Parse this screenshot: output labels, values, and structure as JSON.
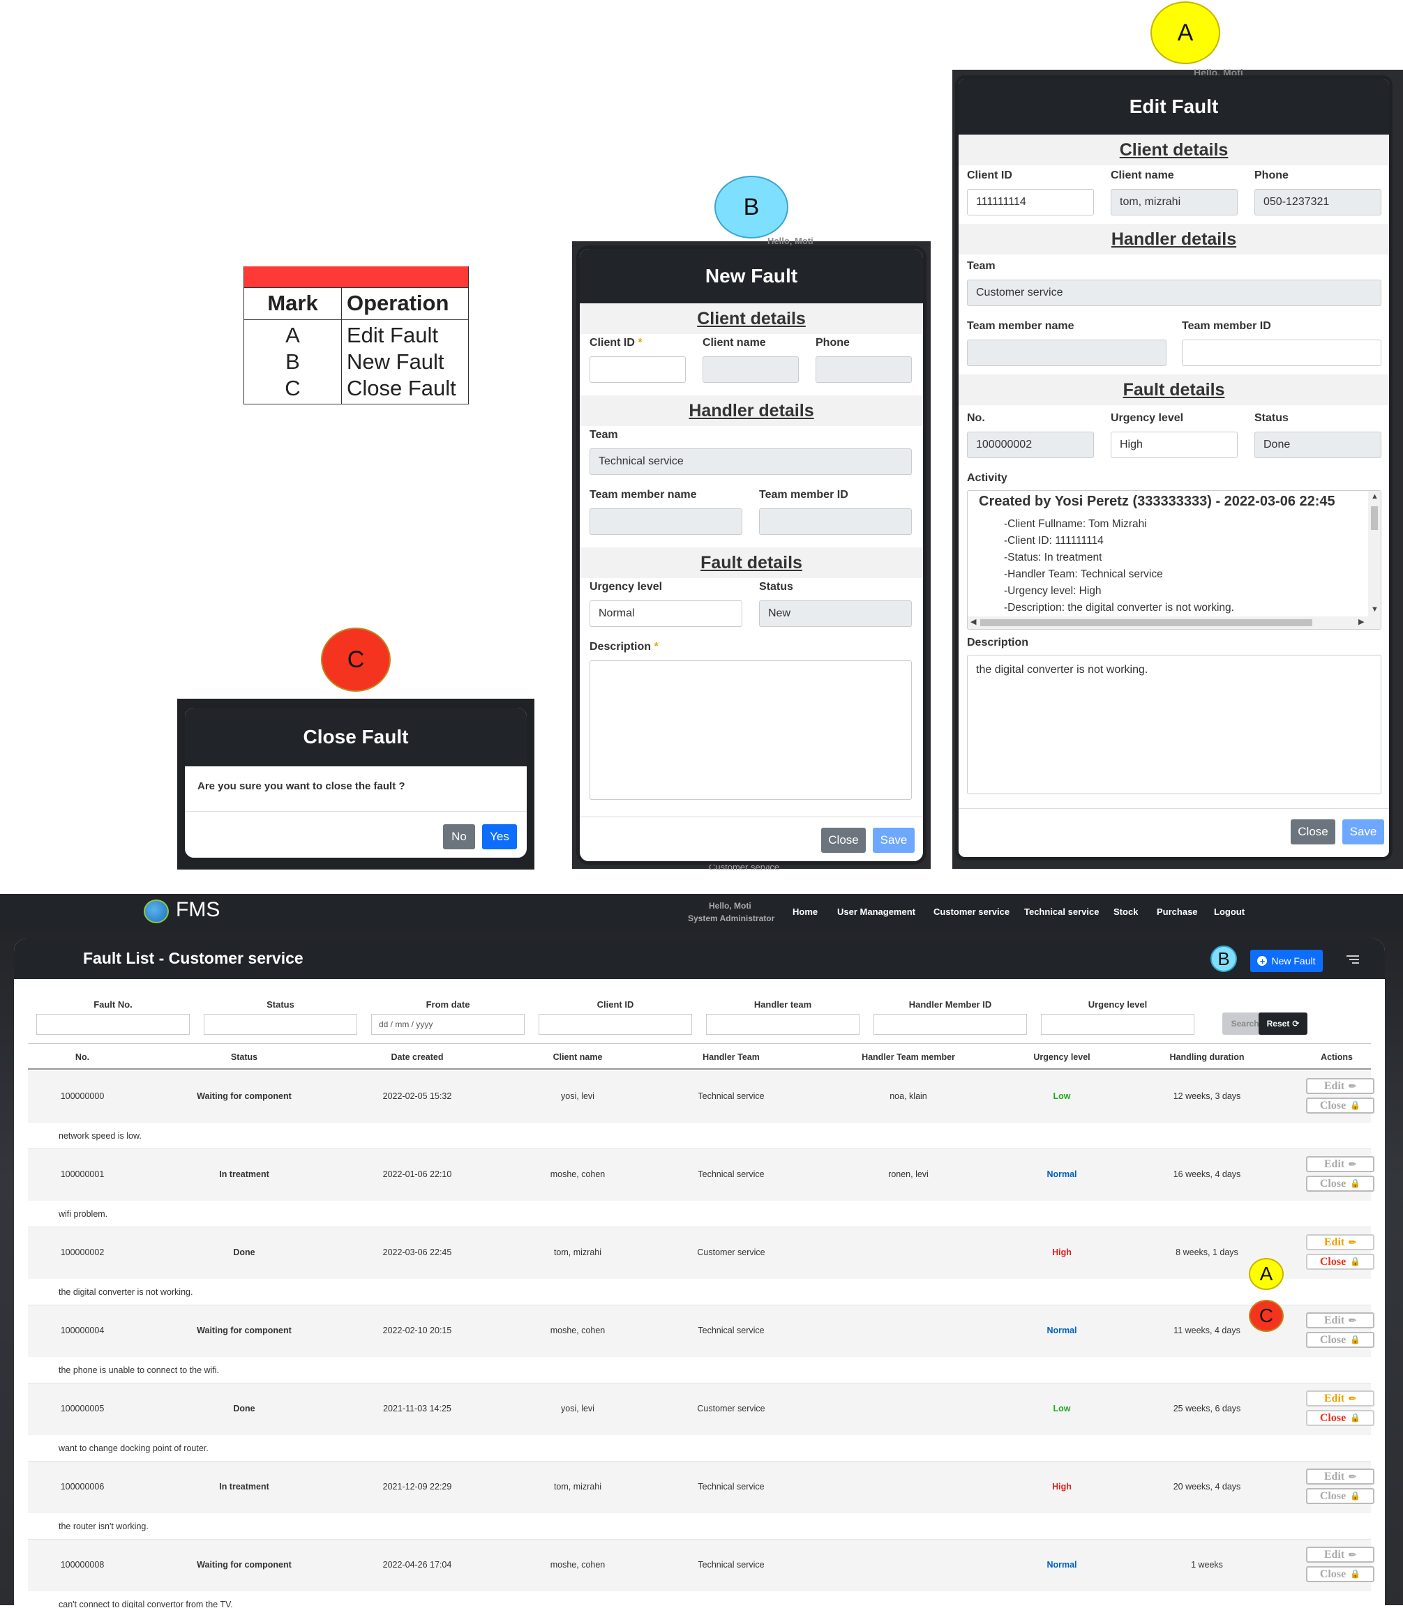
{
  "markers": {
    "a": "A",
    "b": "B",
    "c": "C"
  },
  "legend": {
    "head_mark": "Mark",
    "head_op": "Operation",
    "rows": [
      {
        "mark": "A",
        "op": "Edit Fault"
      },
      {
        "mark": "B",
        "op": "New Fault"
      },
      {
        "mark": "C",
        "op": "Close Fault"
      }
    ]
  },
  "close_modal": {
    "title": "Close Fault",
    "message": "Are you sure you want to close the fault ?",
    "no": "No",
    "yes": "Yes"
  },
  "new_modal": {
    "bg_hello": "Hello, Moti",
    "bg_team": "Customer service",
    "title": "New Fault",
    "client_section": "Client details",
    "client_id_label": "Client ID",
    "req": "*",
    "client_name_label": "Client name",
    "phone_label": "Phone",
    "handler_section": "Handler details",
    "team_label": "Team",
    "team_value": "Technical service",
    "member_name_label": "Team member name",
    "member_id_label": "Team member ID",
    "fault_section": "Fault details",
    "urgency_label": "Urgency level",
    "urgency_value": "Normal",
    "status_label": "Status",
    "status_value": "New",
    "description_label": "Description",
    "close": "Close",
    "save": "Save"
  },
  "edit_modal": {
    "bg_hello": "Hello, Moti",
    "title": "Edit Fault",
    "client_section": "Client details",
    "client_id_label": "Client ID",
    "client_id_value": "111111114",
    "client_name_label": "Client name",
    "client_name_value": "tom, mizrahi",
    "phone_label": "Phone",
    "phone_value": "050-1237321",
    "handler_section": "Handler details",
    "team_label": "Team",
    "team_value": "Customer service",
    "member_name_label": "Team member name",
    "member_id_label": "Team member ID",
    "fault_section": "Fault details",
    "no_label": "No.",
    "no_value": "100000002",
    "urgency_label": "Urgency level",
    "urgency_value": "High",
    "status_label": "Status",
    "status_value": "Done",
    "activity_label": "Activity",
    "activity_title": "Created by Yosi Peretz (333333333) - 2022-03-06 22:45",
    "activity_lines": [
      "-Client Fullname: Tom Mizrahi",
      "-Client ID: 111111114",
      "-Status: In treatment",
      "-Handler Team: Technical service",
      "-Urgency level: High",
      "-Description: the digital converter is not working."
    ],
    "description_label": "Description",
    "description_value": "the digital converter is not working.",
    "close": "Close",
    "save": "Save"
  },
  "app": {
    "logo": "FMS",
    "hello": "Hello, Moti",
    "role": "System Administrator",
    "nav": [
      "Home",
      "User Management",
      "Customer service",
      "Technical service",
      "Stock",
      "Purchase",
      "Logout"
    ],
    "page_title": "Fault List - Customer service",
    "new_fault": "New Fault",
    "filters": {
      "labels": [
        "Fault No.",
        "Status",
        "From date",
        "Client ID",
        "Handler team",
        "Handler Member ID",
        "Urgency level"
      ],
      "date_placeholder": "dd / mm / yyyy",
      "search": "Search",
      "reset": "Reset"
    },
    "columns": [
      "No.",
      "Status",
      "Date created",
      "Client name",
      "Handler Team",
      "Handler Team member",
      "Urgency level",
      "Handling duration",
      "Actions"
    ],
    "edit_label": "Edit",
    "close_label": "Close",
    "rows": [
      {
        "no": "100000000",
        "status": "Waiting for component",
        "date": "2022-02-05 15:32",
        "client": "yosi, levi",
        "team": "Technical service",
        "member": "noa, klain",
        "urgency": "Low",
        "duration": "12 weeks, 3 days",
        "desc": "network speed is low.",
        "active": false
      },
      {
        "no": "100000001",
        "status": "In treatment",
        "date": "2022-01-06 22:10",
        "client": "moshe, cohen",
        "team": "Technical service",
        "member": "ronen, levi",
        "urgency": "Normal",
        "duration": "16 weeks, 4 days",
        "desc": "wifi problem.",
        "active": false
      },
      {
        "no": "100000002",
        "status": "Done",
        "date": "2022-03-06 22:45",
        "client": "tom, mizrahi",
        "team": "Customer service",
        "member": "",
        "urgency": "High",
        "duration": "8 weeks, 1 days",
        "desc": "the digital converter is not working.",
        "active": true
      },
      {
        "no": "100000004",
        "status": "Waiting for component",
        "date": "2022-02-10 20:15",
        "client": "moshe, cohen",
        "team": "Technical service",
        "member": "",
        "urgency": "Normal",
        "duration": "11 weeks, 4 days",
        "desc": "the phone is unable to connect to the wifi.",
        "active": false
      },
      {
        "no": "100000005",
        "status": "Done",
        "date": "2021-11-03 14:25",
        "client": "yosi, levi",
        "team": "Customer service",
        "member": "",
        "urgency": "Low",
        "duration": "25 weeks, 6 days",
        "desc": "want to change docking point of router.",
        "active": true
      },
      {
        "no": "100000006",
        "status": "In treatment",
        "date": "2021-12-09 22:29",
        "client": "tom, mizrahi",
        "team": "Technical service",
        "member": "",
        "urgency": "High",
        "duration": "20 weeks, 4 days",
        "desc": "the router isn't working.",
        "active": false
      },
      {
        "no": "100000008",
        "status": "Waiting for component",
        "date": "2022-04-26 17:04",
        "client": "moshe, cohen",
        "team": "Technical service",
        "member": "",
        "urgency": "Normal",
        "duration": "1 weeks",
        "desc": "can't connect to digital convertor from the TV.",
        "active": false
      }
    ]
  },
  "colors": {
    "dark": "#212529",
    "primary": "#0d6efd",
    "marker_yellow": "#ffff00",
    "marker_blue": "#7fdfff",
    "marker_red": "#f5341f",
    "legend_red": "#ff3a36"
  },
  "icons": {
    "edit": "pencil-icon",
    "close": "lock-icon",
    "new": "plus-circle-icon",
    "search": "search-icon",
    "reset": "refresh-icon",
    "menu": "hamburger-icon",
    "logo": "globe-logo-icon"
  }
}
